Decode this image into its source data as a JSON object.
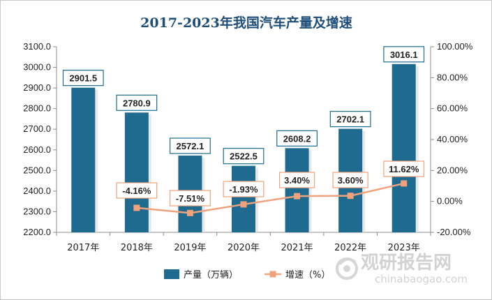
{
  "chart_data": {
    "type": "bar",
    "title": "2017-2023年我国汽车产量及增速",
    "categories": [
      "2017年",
      "2018年",
      "2019年",
      "2020年",
      "2021年",
      "2022年",
      "2023年"
    ],
    "series": [
      {
        "name": "产量（万辆）",
        "type": "bar",
        "axis": "left",
        "values": [
          2901.5,
          2780.9,
          2572.1,
          2522.5,
          2608.2,
          2702.1,
          3016.1
        ],
        "labels": [
          "2901.5",
          "2780.9",
          "2572.1",
          "2522.5",
          "2608.2",
          "2702.1",
          "3016.1"
        ],
        "color": "#1e6b8f"
      },
      {
        "name": "增速（%）",
        "type": "line",
        "axis": "right",
        "values": [
          null,
          -4.16,
          -7.51,
          -1.93,
          3.4,
          3.6,
          11.62
        ],
        "labels": [
          "",
          "-4.16%",
          "-7.51%",
          "-1.93%",
          "3.40%",
          "3.60%",
          "11.62%"
        ],
        "color": "#f0a27c"
      }
    ],
    "y_left": {
      "range": [
        2200,
        3100
      ],
      "ticks": [
        2200,
        2300,
        2400,
        2500,
        2600,
        2700,
        2800,
        2900,
        3000,
        3100
      ],
      "tick_labels": [
        "2200.0",
        "2300.0",
        "2400.0",
        "2500.0",
        "2600.0",
        "2700.0",
        "2800.0",
        "2900.0",
        "3000.0",
        "3100.0"
      ]
    },
    "y_right": {
      "range": [
        -20,
        100
      ],
      "ticks": [
        -20,
        0,
        20,
        40,
        60,
        80,
        100
      ],
      "tick_labels": [
        "-20.00%",
        "0.00%",
        "20.00%",
        "40.00%",
        "60.00%",
        "80.00%",
        "100.00%"
      ]
    },
    "grid": false,
    "legend_position": "bottom",
    "label_box_colors": {
      "bar": "#1e6b8f",
      "line": "#f0a27c"
    }
  },
  "watermark": {
    "text_cn": "观研报告网",
    "text_en": "chinabaogao.com"
  }
}
